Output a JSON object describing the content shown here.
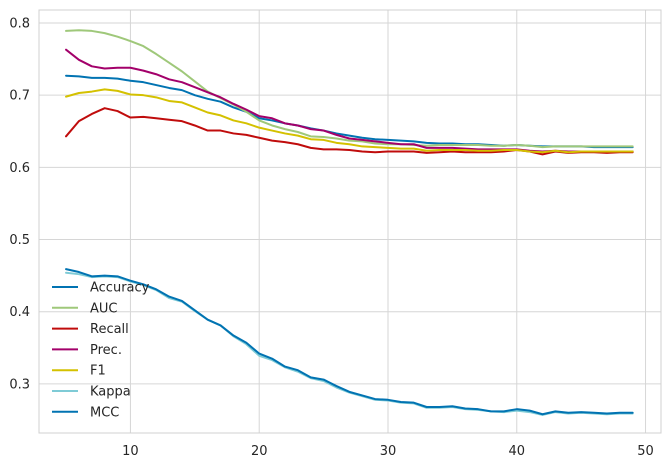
{
  "chart_data": {
    "type": "line",
    "title": "",
    "xlabel": "",
    "ylabel": "",
    "xlim": [
      2.9,
      51.2
    ],
    "ylim": [
      0.232,
      0.818
    ],
    "xticks": [
      10,
      20,
      30,
      40,
      50
    ],
    "yticks": [
      0.3,
      0.4,
      0.5,
      0.6,
      0.7,
      0.8
    ],
    "xtick_labels": [
      "10",
      "20",
      "30",
      "40",
      "50"
    ],
    "ytick_labels": [
      "0.3",
      "0.4",
      "0.5",
      "0.6",
      "0.7",
      "0.8"
    ],
    "grid": true,
    "legend_position": "lower-left",
    "x": [
      5,
      6,
      7,
      8,
      9,
      10,
      11,
      12,
      13,
      14,
      15,
      16,
      17,
      18,
      19,
      20,
      21,
      22,
      23,
      24,
      25,
      26,
      27,
      28,
      29,
      30,
      31,
      32,
      33,
      34,
      35,
      36,
      37,
      38,
      39,
      40,
      41,
      42,
      43,
      44,
      45,
      46,
      47,
      48,
      49
    ],
    "series": [
      {
        "name": "Accuracy",
        "color": "#0173b2",
        "values": [
          0.727,
          0.726,
          0.724,
          0.724,
          0.723,
          0.72,
          0.718,
          0.714,
          0.71,
          0.707,
          0.7,
          0.695,
          0.691,
          0.683,
          0.677,
          0.668,
          0.665,
          0.661,
          0.658,
          0.654,
          0.651,
          0.647,
          0.644,
          0.641,
          0.639,
          0.638,
          0.637,
          0.636,
          0.634,
          0.633,
          0.633,
          0.632,
          0.632,
          0.631,
          0.63,
          0.631,
          0.63,
          0.629,
          0.629,
          0.629,
          0.629,
          0.628,
          0.628,
          0.628,
          0.628
        ]
      },
      {
        "name": "AUC",
        "color": "#9fc87a",
        "values": [
          0.789,
          0.79,
          0.789,
          0.786,
          0.781,
          0.775,
          0.768,
          0.757,
          0.745,
          0.733,
          0.719,
          0.705,
          0.696,
          0.687,
          0.677,
          0.665,
          0.658,
          0.653,
          0.649,
          0.643,
          0.642,
          0.64,
          0.637,
          0.636,
          0.633,
          0.632,
          0.632,
          0.631,
          0.63,
          0.631,
          0.631,
          0.631,
          0.631,
          0.63,
          0.63,
          0.631,
          0.63,
          0.628,
          0.629,
          0.629,
          0.629,
          0.629,
          0.629,
          0.629,
          0.629
        ]
      },
      {
        "name": "Recall",
        "color": "#c00c0c",
        "values": [
          0.643,
          0.664,
          0.674,
          0.682,
          0.678,
          0.669,
          0.67,
          0.668,
          0.666,
          0.664,
          0.658,
          0.651,
          0.651,
          0.647,
          0.645,
          0.641,
          0.637,
          0.635,
          0.632,
          0.627,
          0.625,
          0.625,
          0.624,
          0.622,
          0.621,
          0.622,
          0.622,
          0.622,
          0.62,
          0.621,
          0.622,
          0.621,
          0.621,
          0.621,
          0.622,
          0.624,
          0.622,
          0.618,
          0.622,
          0.62,
          0.621,
          0.621,
          0.62,
          0.621,
          0.621
        ]
      },
      {
        "name": "Prec.",
        "color": "#a3006a",
        "values": [
          0.763,
          0.749,
          0.74,
          0.737,
          0.738,
          0.738,
          0.734,
          0.729,
          0.722,
          0.718,
          0.711,
          0.704,
          0.697,
          0.688,
          0.68,
          0.671,
          0.668,
          0.661,
          0.658,
          0.653,
          0.651,
          0.645,
          0.64,
          0.638,
          0.636,
          0.634,
          0.632,
          0.632,
          0.627,
          0.627,
          0.627,
          0.626,
          0.625,
          0.625,
          0.625,
          0.625,
          0.623,
          0.622,
          0.623,
          0.622,
          0.622,
          0.622,
          0.622,
          0.622,
          0.622
        ]
      },
      {
        "name": "F1",
        "color": "#d4c100",
        "values": [
          0.698,
          0.703,
          0.705,
          0.708,
          0.706,
          0.701,
          0.7,
          0.697,
          0.692,
          0.69,
          0.683,
          0.676,
          0.672,
          0.665,
          0.661,
          0.655,
          0.651,
          0.647,
          0.644,
          0.639,
          0.638,
          0.634,
          0.632,
          0.629,
          0.628,
          0.627,
          0.626,
          0.626,
          0.623,
          0.624,
          0.624,
          0.624,
          0.623,
          0.623,
          0.624,
          0.624,
          0.622,
          0.621,
          0.623,
          0.621,
          0.622,
          0.622,
          0.622,
          0.622,
          0.622
        ]
      },
      {
        "name": "Kappa",
        "color": "#7fcbd6",
        "values": [
          0.454,
          0.452,
          0.448,
          0.449,
          0.448,
          0.442,
          0.437,
          0.43,
          0.419,
          0.414,
          0.401,
          0.389,
          0.381,
          0.366,
          0.355,
          0.339,
          0.333,
          0.323,
          0.317,
          0.308,
          0.304,
          0.295,
          0.288,
          0.283,
          0.278,
          0.277,
          0.274,
          0.273,
          0.267,
          0.267,
          0.268,
          0.265,
          0.264,
          0.262,
          0.261,
          0.263,
          0.261,
          0.257,
          0.261,
          0.259,
          0.26,
          0.259,
          0.258,
          0.259,
          0.259
        ]
      },
      {
        "name": "MCC",
        "color": "#0173b2",
        "values": [
          0.459,
          0.455,
          0.449,
          0.45,
          0.449,
          0.443,
          0.438,
          0.431,
          0.421,
          0.415,
          0.402,
          0.389,
          0.381,
          0.367,
          0.357,
          0.342,
          0.335,
          0.324,
          0.319,
          0.309,
          0.306,
          0.297,
          0.289,
          0.284,
          0.279,
          0.278,
          0.275,
          0.274,
          0.268,
          0.268,
          0.269,
          0.266,
          0.265,
          0.262,
          0.262,
          0.265,
          0.263,
          0.258,
          0.262,
          0.26,
          0.261,
          0.26,
          0.259,
          0.26,
          0.26
        ]
      }
    ]
  }
}
